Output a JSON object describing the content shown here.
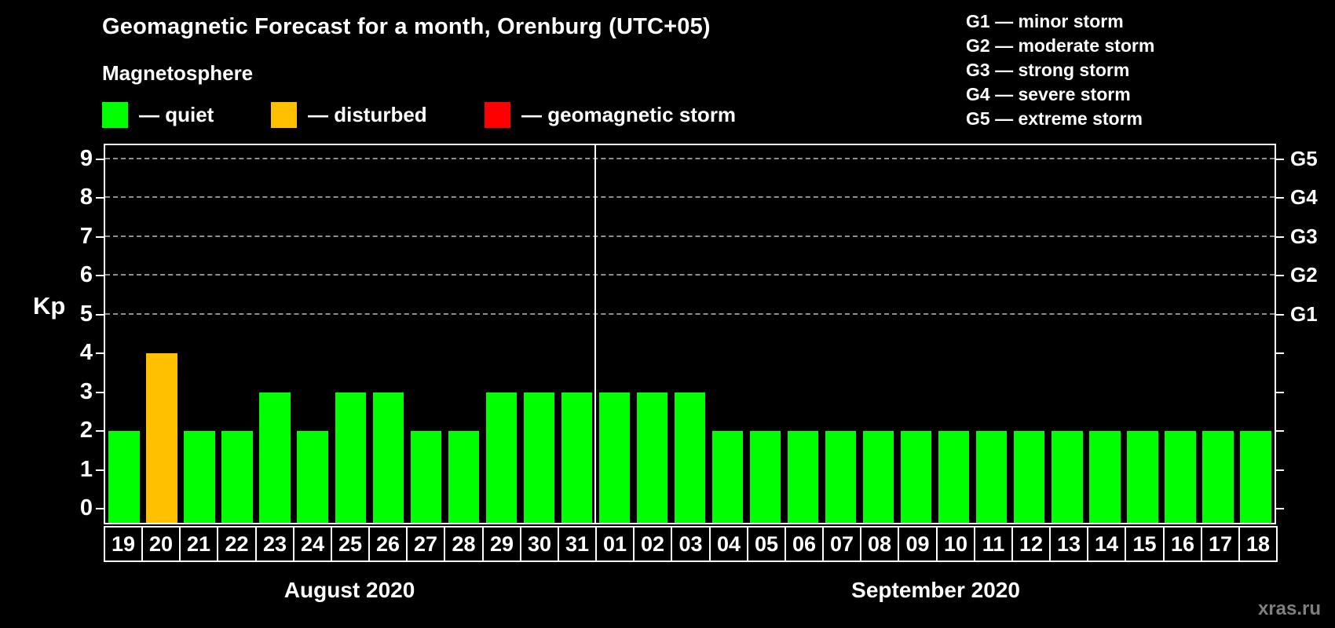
{
  "header": {
    "title": "Geomagnetic Forecast for a month, Orenburg (UTC+05)",
    "subtitle": "Magnetosphere"
  },
  "legend": {
    "items": [
      {
        "name": "quiet",
        "label": "— quiet",
        "color": "#00ff00"
      },
      {
        "name": "disturbed",
        "label": "— disturbed",
        "color": "#ffc000"
      },
      {
        "name": "storm",
        "label": "— geomagnetic storm",
        "color": "#ff0000"
      }
    ]
  },
  "storm_scale_legend": {
    "items": [
      "G1 — minor storm",
      "G2 — moderate storm",
      "G3 — strong storm",
      "G4 — severe storm",
      "G5 — extreme storm"
    ]
  },
  "watermark": "xras.ru",
  "chart_data": {
    "type": "bar",
    "title": "Geomagnetic Forecast for a month, Orenburg (UTC+05)",
    "ylabel": "Kp",
    "ylim": [
      0,
      9
    ],
    "y_ticks": [
      0,
      1,
      2,
      3,
      4,
      5,
      6,
      7,
      8,
      9
    ],
    "grid": "dashed horizontal gridlines at Kp 5,6,7,8,9",
    "legend_position": "top",
    "right_axis": [
      {
        "label": "G1",
        "kp": 5
      },
      {
        "label": "G2",
        "kp": 6
      },
      {
        "label": "G3",
        "kp": 7
      },
      {
        "label": "G4",
        "kp": 8
      },
      {
        "label": "G5",
        "kp": 9
      }
    ],
    "months": [
      {
        "label": "August 2020",
        "days": [
          {
            "date": "19",
            "kp": 2,
            "status": "quiet"
          },
          {
            "date": "20",
            "kp": 4,
            "status": "disturbed"
          },
          {
            "date": "21",
            "kp": 2,
            "status": "quiet"
          },
          {
            "date": "22",
            "kp": 2,
            "status": "quiet"
          },
          {
            "date": "23",
            "kp": 3,
            "status": "quiet"
          },
          {
            "date": "24",
            "kp": 2,
            "status": "quiet"
          },
          {
            "date": "25",
            "kp": 3,
            "status": "quiet"
          },
          {
            "date": "26",
            "kp": 3,
            "status": "quiet"
          },
          {
            "date": "27",
            "kp": 2,
            "status": "quiet"
          },
          {
            "date": "28",
            "kp": 2,
            "status": "quiet"
          },
          {
            "date": "29",
            "kp": 3,
            "status": "quiet"
          },
          {
            "date": "30",
            "kp": 3,
            "status": "quiet"
          },
          {
            "date": "31",
            "kp": 3,
            "status": "quiet"
          }
        ]
      },
      {
        "label": "September 2020",
        "days": [
          {
            "date": "01",
            "kp": 3,
            "status": "quiet"
          },
          {
            "date": "02",
            "kp": 3,
            "status": "quiet"
          },
          {
            "date": "03",
            "kp": 3,
            "status": "quiet"
          },
          {
            "date": "04",
            "kp": 2,
            "status": "quiet"
          },
          {
            "date": "05",
            "kp": 2,
            "status": "quiet"
          },
          {
            "date": "06",
            "kp": 2,
            "status": "quiet"
          },
          {
            "date": "07",
            "kp": 2,
            "status": "quiet"
          },
          {
            "date": "08",
            "kp": 2,
            "status": "quiet"
          },
          {
            "date": "09",
            "kp": 2,
            "status": "quiet"
          },
          {
            "date": "10",
            "kp": 2,
            "status": "quiet"
          },
          {
            "date": "11",
            "kp": 2,
            "status": "quiet"
          },
          {
            "date": "12",
            "kp": 2,
            "status": "quiet"
          },
          {
            "date": "13",
            "kp": 2,
            "status": "quiet"
          },
          {
            "date": "14",
            "kp": 2,
            "status": "quiet"
          },
          {
            "date": "15",
            "kp": 2,
            "status": "quiet"
          },
          {
            "date": "16",
            "kp": 2,
            "status": "quiet"
          },
          {
            "date": "17",
            "kp": 2,
            "status": "quiet"
          },
          {
            "date": "18",
            "kp": 2,
            "status": "quiet"
          }
        ]
      }
    ]
  }
}
